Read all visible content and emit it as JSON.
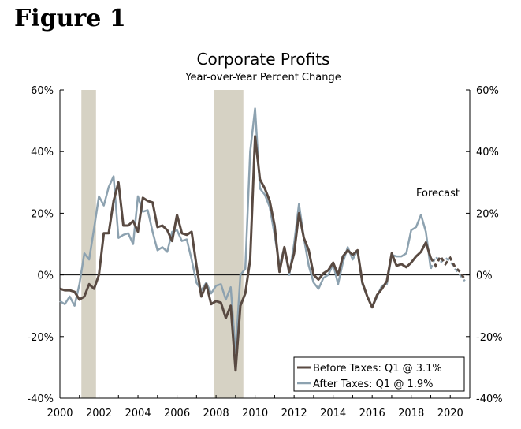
{
  "figure_label": "Figure 1",
  "chart_data": {
    "type": "line",
    "title": "Corporate Profits",
    "subtitle": "Year-over-Year Percent Change",
    "xlabel": "",
    "ylabel": "",
    "xlim": [
      2000,
      2021
    ],
    "ylim": [
      -40,
      60
    ],
    "x_ticks": [
      "2000",
      "2002",
      "2004",
      "2006",
      "2008",
      "2010",
      "2012",
      "2014",
      "2016",
      "2018",
      "2020"
    ],
    "y_ticks": [
      "60%",
      "40%",
      "20%",
      "0%",
      "-20%",
      "-40%"
    ],
    "y_tick_values": [
      60,
      40,
      20,
      0,
      -20,
      -40
    ],
    "x_tick_values": [
      2000,
      2002,
      2004,
      2006,
      2008,
      2010,
      2012,
      2014,
      2016,
      2018,
      2020
    ],
    "recessions": [
      {
        "start": 2001.1,
        "end": 2001.85
      },
      {
        "start": 2007.9,
        "end": 2009.4
      }
    ],
    "forecast_start": 2019.0,
    "annotation": "Forecast",
    "colors": {
      "before": "#594a42",
      "after": "#8da2b0",
      "recession": "#d6d2c4",
      "axis": "#000000"
    },
    "legend": {
      "position": "bottom-right",
      "entries": [
        "Before Taxes: Q1 @ 3.1%",
        "After Taxes: Q1 @ 1.9%"
      ]
    },
    "series": [
      {
        "name": "Before Taxes",
        "points": [
          [
            2000.0,
            -4.5
          ],
          [
            2000.25,
            -5
          ],
          [
            2000.5,
            -5
          ],
          [
            2000.75,
            -5.5
          ],
          [
            2001.0,
            -8
          ],
          [
            2001.25,
            -7
          ],
          [
            2001.5,
            -3
          ],
          [
            2001.75,
            -4.5
          ],
          [
            2002.0,
            0
          ],
          [
            2002.25,
            13.5
          ],
          [
            2002.5,
            13.5
          ],
          [
            2002.75,
            24
          ],
          [
            2003.0,
            30
          ],
          [
            2003.25,
            16
          ],
          [
            2003.5,
            16
          ],
          [
            2003.75,
            17.5
          ],
          [
            2004.0,
            14
          ],
          [
            2004.25,
            25
          ],
          [
            2004.5,
            24
          ],
          [
            2004.75,
            23.5
          ],
          [
            2005.0,
            15.5
          ],
          [
            2005.25,
            16
          ],
          [
            2005.5,
            14.5
          ],
          [
            2005.75,
            11
          ],
          [
            2006.0,
            19.5
          ],
          [
            2006.25,
            13.5
          ],
          [
            2006.5,
            13
          ],
          [
            2006.75,
            14
          ],
          [
            2007.0,
            3
          ],
          [
            2007.25,
            -7
          ],
          [
            2007.5,
            -3
          ],
          [
            2007.75,
            -9.5
          ],
          [
            2008.0,
            -8.5
          ],
          [
            2008.25,
            -9
          ],
          [
            2008.5,
            -14
          ],
          [
            2008.75,
            -10
          ],
          [
            2009.0,
            -31
          ],
          [
            2009.25,
            -10
          ],
          [
            2009.5,
            -6
          ],
          [
            2009.75,
            5
          ],
          [
            2010.0,
            45
          ],
          [
            2010.25,
            31
          ],
          [
            2010.5,
            28
          ],
          [
            2010.75,
            24
          ],
          [
            2011.0,
            16
          ],
          [
            2011.25,
            1
          ],
          [
            2011.5,
            9
          ],
          [
            2011.75,
            1
          ],
          [
            2012.0,
            7
          ],
          [
            2012.25,
            20
          ],
          [
            2012.5,
            12
          ],
          [
            2012.75,
            8
          ],
          [
            2013.0,
            0
          ],
          [
            2013.25,
            -1.5
          ],
          [
            2013.5,
            0.5
          ],
          [
            2013.75,
            1.5
          ],
          [
            2014.0,
            4
          ],
          [
            2014.25,
            0
          ],
          [
            2014.5,
            6
          ],
          [
            2014.75,
            8
          ],
          [
            2015.0,
            6.5
          ],
          [
            2015.25,
            8
          ],
          [
            2015.5,
            -2.5
          ],
          [
            2015.75,
            -7
          ],
          [
            2016.0,
            -10.5
          ],
          [
            2016.25,
            -6.5
          ],
          [
            2016.5,
            -4.5
          ],
          [
            2016.75,
            -2
          ],
          [
            2017.0,
            7
          ],
          [
            2017.25,
            3
          ],
          [
            2017.5,
            3.5
          ],
          [
            2017.75,
            2.5
          ],
          [
            2018.0,
            4
          ],
          [
            2018.25,
            6
          ],
          [
            2018.5,
            7.5
          ],
          [
            2018.75,
            10.5
          ],
          [
            2019.0,
            5.5
          ],
          [
            2019.25,
            3
          ],
          [
            2019.5,
            6
          ],
          [
            2019.75,
            3.5
          ],
          [
            2020.0,
            5.5
          ],
          [
            2020.25,
            2.5
          ],
          [
            2020.5,
            1
          ],
          [
            2020.75,
            -1.5
          ]
        ]
      },
      {
        "name": "After Taxes",
        "points": [
          [
            2000.0,
            -8.5
          ],
          [
            2000.25,
            -9.5
          ],
          [
            2000.5,
            -7
          ],
          [
            2000.75,
            -10
          ],
          [
            2001.0,
            -3
          ],
          [
            2001.25,
            7
          ],
          [
            2001.5,
            5
          ],
          [
            2001.75,
            15
          ],
          [
            2002.0,
            25.5
          ],
          [
            2002.25,
            22.5
          ],
          [
            2002.5,
            28.5
          ],
          [
            2002.75,
            32
          ],
          [
            2003.0,
            12
          ],
          [
            2003.25,
            13
          ],
          [
            2003.5,
            13.5
          ],
          [
            2003.75,
            10
          ],
          [
            2004.0,
            25.5
          ],
          [
            2004.25,
            20.5
          ],
          [
            2004.5,
            21
          ],
          [
            2004.75,
            14
          ],
          [
            2005.0,
            8
          ],
          [
            2005.25,
            9
          ],
          [
            2005.5,
            7.5
          ],
          [
            2005.75,
            14
          ],
          [
            2006.0,
            14.5
          ],
          [
            2006.25,
            11
          ],
          [
            2006.5,
            11.5
          ],
          [
            2006.75,
            5
          ],
          [
            2007.0,
            -2.5
          ],
          [
            2007.25,
            -5
          ],
          [
            2007.5,
            -2.5
          ],
          [
            2007.75,
            -6
          ],
          [
            2008.0,
            -3.5
          ],
          [
            2008.25,
            -3
          ],
          [
            2008.5,
            -8
          ],
          [
            2008.75,
            -4
          ],
          [
            2009.0,
            -25
          ],
          [
            2009.25,
            0
          ],
          [
            2009.5,
            2
          ],
          [
            2009.75,
            40
          ],
          [
            2010.0,
            54
          ],
          [
            2010.25,
            28
          ],
          [
            2010.5,
            26
          ],
          [
            2010.75,
            22
          ],
          [
            2011.0,
            13
          ],
          [
            2011.25,
            3
          ],
          [
            2011.5,
            9
          ],
          [
            2011.75,
            0
          ],
          [
            2012.0,
            10
          ],
          [
            2012.25,
            23
          ],
          [
            2012.5,
            12
          ],
          [
            2012.75,
            3
          ],
          [
            2013.0,
            -2.5
          ],
          [
            2013.25,
            -4.5
          ],
          [
            2013.5,
            -1
          ],
          [
            2013.75,
            0
          ],
          [
            2014.0,
            3.5
          ],
          [
            2014.25,
            -3
          ],
          [
            2014.5,
            4
          ],
          [
            2014.75,
            9
          ],
          [
            2015.0,
            5
          ],
          [
            2015.25,
            8
          ],
          [
            2015.5,
            -3
          ],
          [
            2015.75,
            -7
          ],
          [
            2016.0,
            -10.5
          ],
          [
            2016.25,
            -7
          ],
          [
            2016.5,
            -3.5
          ],
          [
            2016.75,
            -3
          ],
          [
            2017.0,
            6.5
          ],
          [
            2017.25,
            6
          ],
          [
            2017.5,
            6
          ],
          [
            2017.75,
            7
          ],
          [
            2018.0,
            14.5
          ],
          [
            2018.25,
            15.5
          ],
          [
            2018.5,
            19.5
          ],
          [
            2018.75,
            14
          ],
          [
            2019.0,
            2
          ],
          [
            2019.25,
            6
          ],
          [
            2019.5,
            4
          ],
          [
            2019.75,
            5.5
          ],
          [
            2020.0,
            4.5
          ],
          [
            2020.25,
            2
          ],
          [
            2020.5,
            0
          ],
          [
            2020.75,
            -2
          ]
        ]
      }
    ]
  }
}
